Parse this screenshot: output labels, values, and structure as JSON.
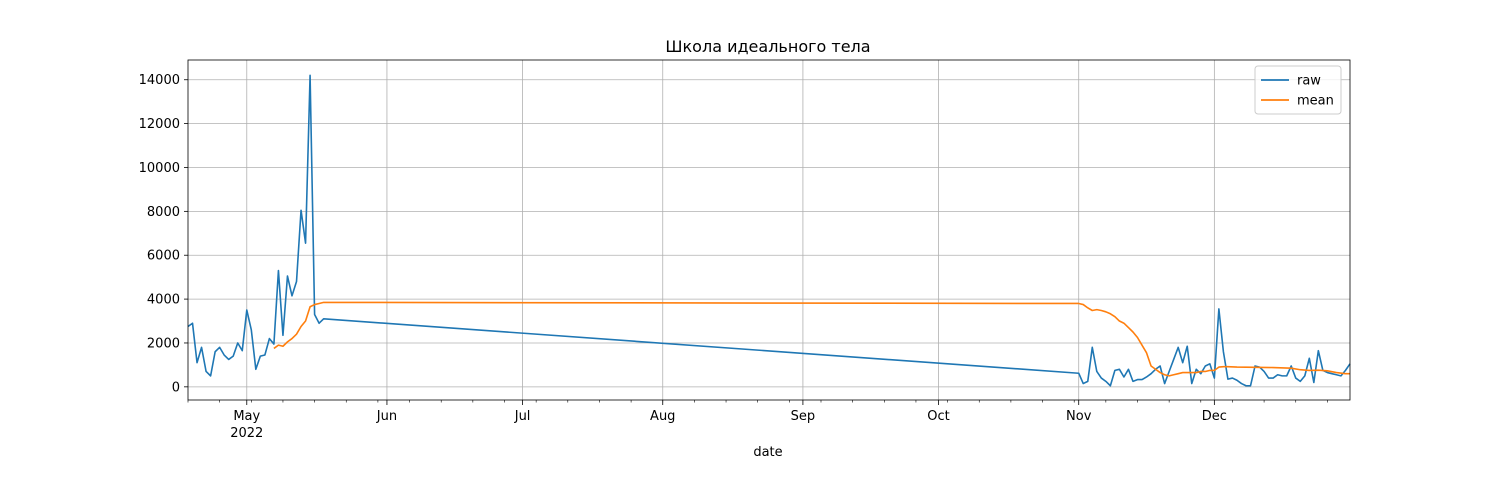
{
  "chart_data": {
    "type": "line",
    "title": "Школа идеального тела",
    "xlabel": "date",
    "ylabel": "",
    "xlim": [
      "2022-04-18",
      "2022-12-31"
    ],
    "ylim": [
      -600,
      14900
    ],
    "grid": true,
    "legend_position": "upper right",
    "x_ticks": [
      {
        "date": "2022-05-01",
        "label": "May",
        "sublabel": "2022"
      },
      {
        "date": "2022-06-01",
        "label": "Jun",
        "sublabel": ""
      },
      {
        "date": "2022-07-01",
        "label": "Jul",
        "sublabel": ""
      },
      {
        "date": "2022-08-01",
        "label": "Aug",
        "sublabel": ""
      },
      {
        "date": "2022-09-01",
        "label": "Sep",
        "sublabel": ""
      },
      {
        "date": "2022-10-01",
        "label": "Oct",
        "sublabel": ""
      },
      {
        "date": "2022-11-01",
        "label": "Nov",
        "sublabel": ""
      },
      {
        "date": "2022-12-01",
        "label": "Dec",
        "sublabel": ""
      }
    ],
    "y_ticks": [
      0,
      2000,
      4000,
      6000,
      8000,
      10000,
      12000,
      14000
    ],
    "series": [
      {
        "name": "raw",
        "color": "#1f77b4",
        "points": [
          [
            "2022-04-18",
            2750
          ],
          [
            "2022-04-19",
            2900
          ],
          [
            "2022-04-20",
            1100
          ],
          [
            "2022-04-21",
            1800
          ],
          [
            "2022-04-22",
            700
          ],
          [
            "2022-04-23",
            500
          ],
          [
            "2022-04-24",
            1600
          ],
          [
            "2022-04-25",
            1800
          ],
          [
            "2022-04-26",
            1450
          ],
          [
            "2022-04-27",
            1250
          ],
          [
            "2022-04-28",
            1400
          ],
          [
            "2022-04-29",
            2000
          ],
          [
            "2022-04-30",
            1650
          ],
          [
            "2022-05-01",
            3500
          ],
          [
            "2022-05-02",
            2600
          ],
          [
            "2022-05-03",
            800
          ],
          [
            "2022-05-04",
            1400
          ],
          [
            "2022-05-05",
            1450
          ],
          [
            "2022-05-06",
            2200
          ],
          [
            "2022-05-07",
            1950
          ],
          [
            "2022-05-08",
            5300
          ],
          [
            "2022-05-09",
            2350
          ],
          [
            "2022-05-10",
            5050
          ],
          [
            "2022-05-11",
            4150
          ],
          [
            "2022-05-12",
            4800
          ],
          [
            "2022-05-13",
            8050
          ],
          [
            "2022-05-14",
            6550
          ],
          [
            "2022-05-15",
            14200
          ],
          [
            "2022-05-16",
            3300
          ],
          [
            "2022-05-17",
            2900
          ],
          [
            "2022-05-18",
            3100
          ],
          [
            "2022-11-01",
            620
          ],
          [
            "2022-11-02",
            150
          ],
          [
            "2022-11-03",
            250
          ],
          [
            "2022-11-04",
            1800
          ],
          [
            "2022-11-05",
            700
          ],
          [
            "2022-11-06",
            400
          ],
          [
            "2022-11-07",
            250
          ],
          [
            "2022-11-08",
            50
          ],
          [
            "2022-11-09",
            750
          ],
          [
            "2022-11-10",
            800
          ],
          [
            "2022-11-11",
            450
          ],
          [
            "2022-11-12",
            800
          ],
          [
            "2022-11-13",
            250
          ],
          [
            "2022-11-14",
            330
          ],
          [
            "2022-11-15",
            330
          ],
          [
            "2022-11-16",
            450
          ],
          [
            "2022-11-17",
            600
          ],
          [
            "2022-11-18",
            800
          ],
          [
            "2022-11-19",
            950
          ],
          [
            "2022-11-20",
            150
          ],
          [
            "2022-11-21",
            700
          ],
          [
            "2022-11-22",
            1250
          ],
          [
            "2022-11-23",
            1800
          ],
          [
            "2022-11-24",
            1100
          ],
          [
            "2022-11-25",
            1850
          ],
          [
            "2022-11-26",
            150
          ],
          [
            "2022-11-27",
            800
          ],
          [
            "2022-11-28",
            600
          ],
          [
            "2022-11-29",
            950
          ],
          [
            "2022-11-30",
            1050
          ],
          [
            "2022-12-01",
            400
          ],
          [
            "2022-12-02",
            3550
          ],
          [
            "2022-12-03",
            1600
          ],
          [
            "2022-12-04",
            350
          ],
          [
            "2022-12-05",
            400
          ],
          [
            "2022-12-06",
            300
          ],
          [
            "2022-12-07",
            150
          ],
          [
            "2022-12-08",
            50
          ],
          [
            "2022-12-09",
            50
          ],
          [
            "2022-12-10",
            950
          ],
          [
            "2022-12-11",
            900
          ],
          [
            "2022-12-12",
            700
          ],
          [
            "2022-12-13",
            400
          ],
          [
            "2022-12-14",
            400
          ],
          [
            "2022-12-15",
            550
          ],
          [
            "2022-12-16",
            500
          ],
          [
            "2022-12-17",
            500
          ],
          [
            "2022-12-18",
            950
          ],
          [
            "2022-12-19",
            400
          ],
          [
            "2022-12-20",
            250
          ],
          [
            "2022-12-21",
            500
          ],
          [
            "2022-12-22",
            1300
          ],
          [
            "2022-12-23",
            200
          ],
          [
            "2022-12-24",
            1650
          ],
          [
            "2022-12-25",
            750
          ],
          [
            "2022-12-26",
            650
          ],
          [
            "2022-12-27",
            600
          ],
          [
            "2022-12-28",
            550
          ],
          [
            "2022-12-29",
            500
          ],
          [
            "2022-12-30",
            750
          ],
          [
            "2022-12-31",
            1050
          ]
        ]
      },
      {
        "name": "mean",
        "color": "#ff7f0e",
        "points": [
          [
            "2022-05-07",
            1750
          ],
          [
            "2022-05-08",
            1900
          ],
          [
            "2022-05-09",
            1850
          ],
          [
            "2022-05-10",
            2050
          ],
          [
            "2022-05-11",
            2200
          ],
          [
            "2022-05-12",
            2400
          ],
          [
            "2022-05-13",
            2750
          ],
          [
            "2022-05-14",
            3000
          ],
          [
            "2022-05-15",
            3650
          ],
          [
            "2022-05-16",
            3750
          ],
          [
            "2022-05-17",
            3800
          ],
          [
            "2022-05-18",
            3850
          ],
          [
            "2022-11-01",
            3800
          ],
          [
            "2022-11-02",
            3750
          ],
          [
            "2022-11-03",
            3600
          ],
          [
            "2022-11-04",
            3480
          ],
          [
            "2022-11-05",
            3520
          ],
          [
            "2022-11-06",
            3480
          ],
          [
            "2022-11-07",
            3420
          ],
          [
            "2022-11-08",
            3330
          ],
          [
            "2022-11-09",
            3200
          ],
          [
            "2022-11-10",
            3000
          ],
          [
            "2022-11-11",
            2900
          ],
          [
            "2022-11-12",
            2700
          ],
          [
            "2022-11-13",
            2500
          ],
          [
            "2022-11-14",
            2250
          ],
          [
            "2022-11-15",
            1900
          ],
          [
            "2022-11-16",
            1550
          ],
          [
            "2022-11-17",
            950
          ],
          [
            "2022-11-18",
            800
          ],
          [
            "2022-11-19",
            650
          ],
          [
            "2022-11-20",
            550
          ],
          [
            "2022-11-21",
            500
          ],
          [
            "2022-11-22",
            550
          ],
          [
            "2022-11-23",
            600
          ],
          [
            "2022-11-24",
            650
          ],
          [
            "2022-11-25",
            650
          ],
          [
            "2022-11-26",
            650
          ],
          [
            "2022-11-27",
            650
          ],
          [
            "2022-11-28",
            700
          ],
          [
            "2022-11-29",
            700
          ],
          [
            "2022-11-30",
            750
          ],
          [
            "2022-12-01",
            750
          ],
          [
            "2022-12-02",
            900
          ],
          [
            "2022-12-03",
            920
          ],
          [
            "2022-12-04",
            920
          ],
          [
            "2022-12-06",
            900
          ],
          [
            "2022-12-10",
            890
          ],
          [
            "2022-12-14",
            880
          ],
          [
            "2022-12-18",
            850
          ],
          [
            "2022-12-20",
            780
          ],
          [
            "2022-12-22",
            750
          ],
          [
            "2022-12-24",
            760
          ],
          [
            "2022-12-26",
            730
          ],
          [
            "2022-12-28",
            650
          ],
          [
            "2022-12-30",
            600
          ],
          [
            "2022-12-31",
            600
          ]
        ]
      }
    ]
  }
}
